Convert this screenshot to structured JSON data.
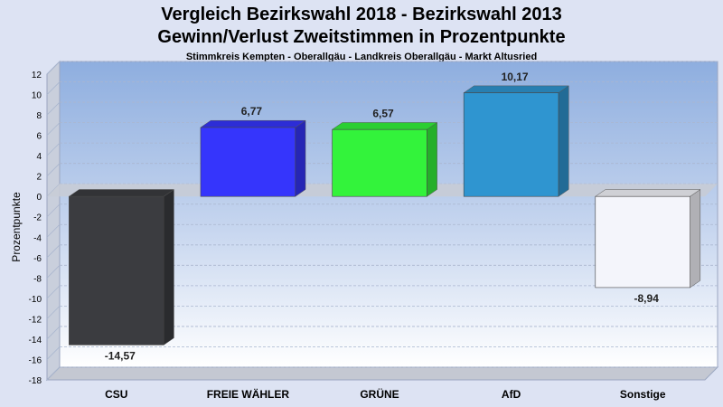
{
  "title_line1": "Vergleich Bezirkswahl 2018 - Bezirkswahl 2013",
  "title_line2": "Gewinn/Verlust Zweitstimmen in Prozentpunkte",
  "subtitle": "Stimmkreis Kempten - Oberallgäu - Landkreis Oberallgäu - Markt Altusried",
  "chart_data": {
    "type": "bar",
    "categories": [
      "CSU",
      "FREIE WÄHLER",
      "GRÜNE",
      "AfD",
      "Sonstige"
    ],
    "values": [
      -14.57,
      6.77,
      6.57,
      10.17,
      -8.94
    ],
    "value_labels": [
      "-14,57",
      "6,77",
      "6,57",
      "10,17",
      "-8,94"
    ],
    "colors": [
      "#3b3c40",
      "#3535fc",
      "#33f33b",
      "#2f95d0",
      "#f4f5fb"
    ],
    "ylabel": "Prozentpunkte",
    "ylim": [
      -18,
      12
    ],
    "yticks": [
      12,
      10,
      8,
      6,
      4,
      2,
      0,
      -2,
      -4,
      -6,
      -8,
      -10,
      -12,
      -14,
      -16,
      -18
    ],
    "grid": true,
    "style": "3d-bars"
  }
}
